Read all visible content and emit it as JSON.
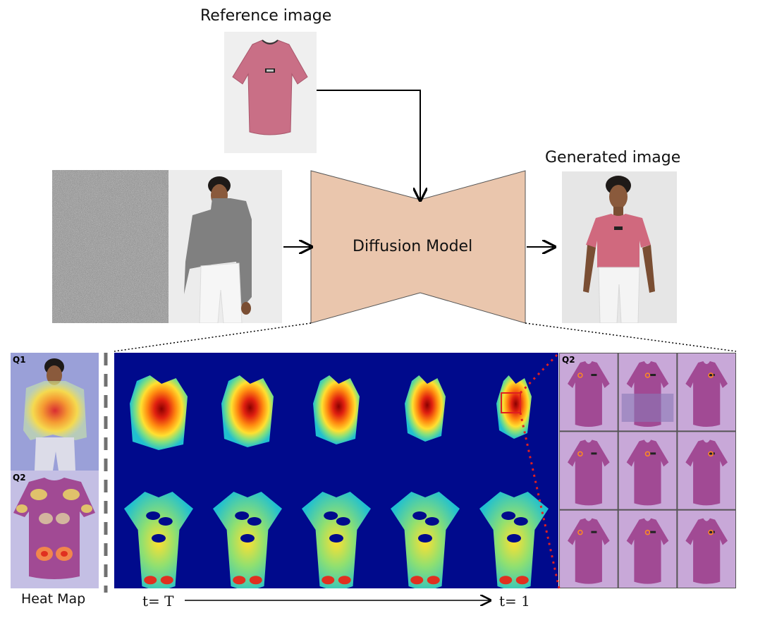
{
  "labels": {
    "reference_image": "Reference image",
    "generated_image": "Generated image",
    "diffusion_model": "Diffusion Model",
    "heat_map": "Heat Map",
    "q1": "Q1",
    "q2_left": "Q2",
    "q2_right": "Q2",
    "t_start": "t= T",
    "t_end": "t= 1"
  },
  "colors": {
    "diffusion_fill": "#eac6ad",
    "heatmap_background": "#000a8c",
    "shirt_pink": "#c96f86",
    "shirt_purple": "#a14a94",
    "panel_lavender": "#c8a8d8",
    "red_marker": "#e02020"
  },
  "heatmap_grid": {
    "rows": 2,
    "columns": 5
  },
  "q2_grid": {
    "rows": 3,
    "columns": 3
  }
}
